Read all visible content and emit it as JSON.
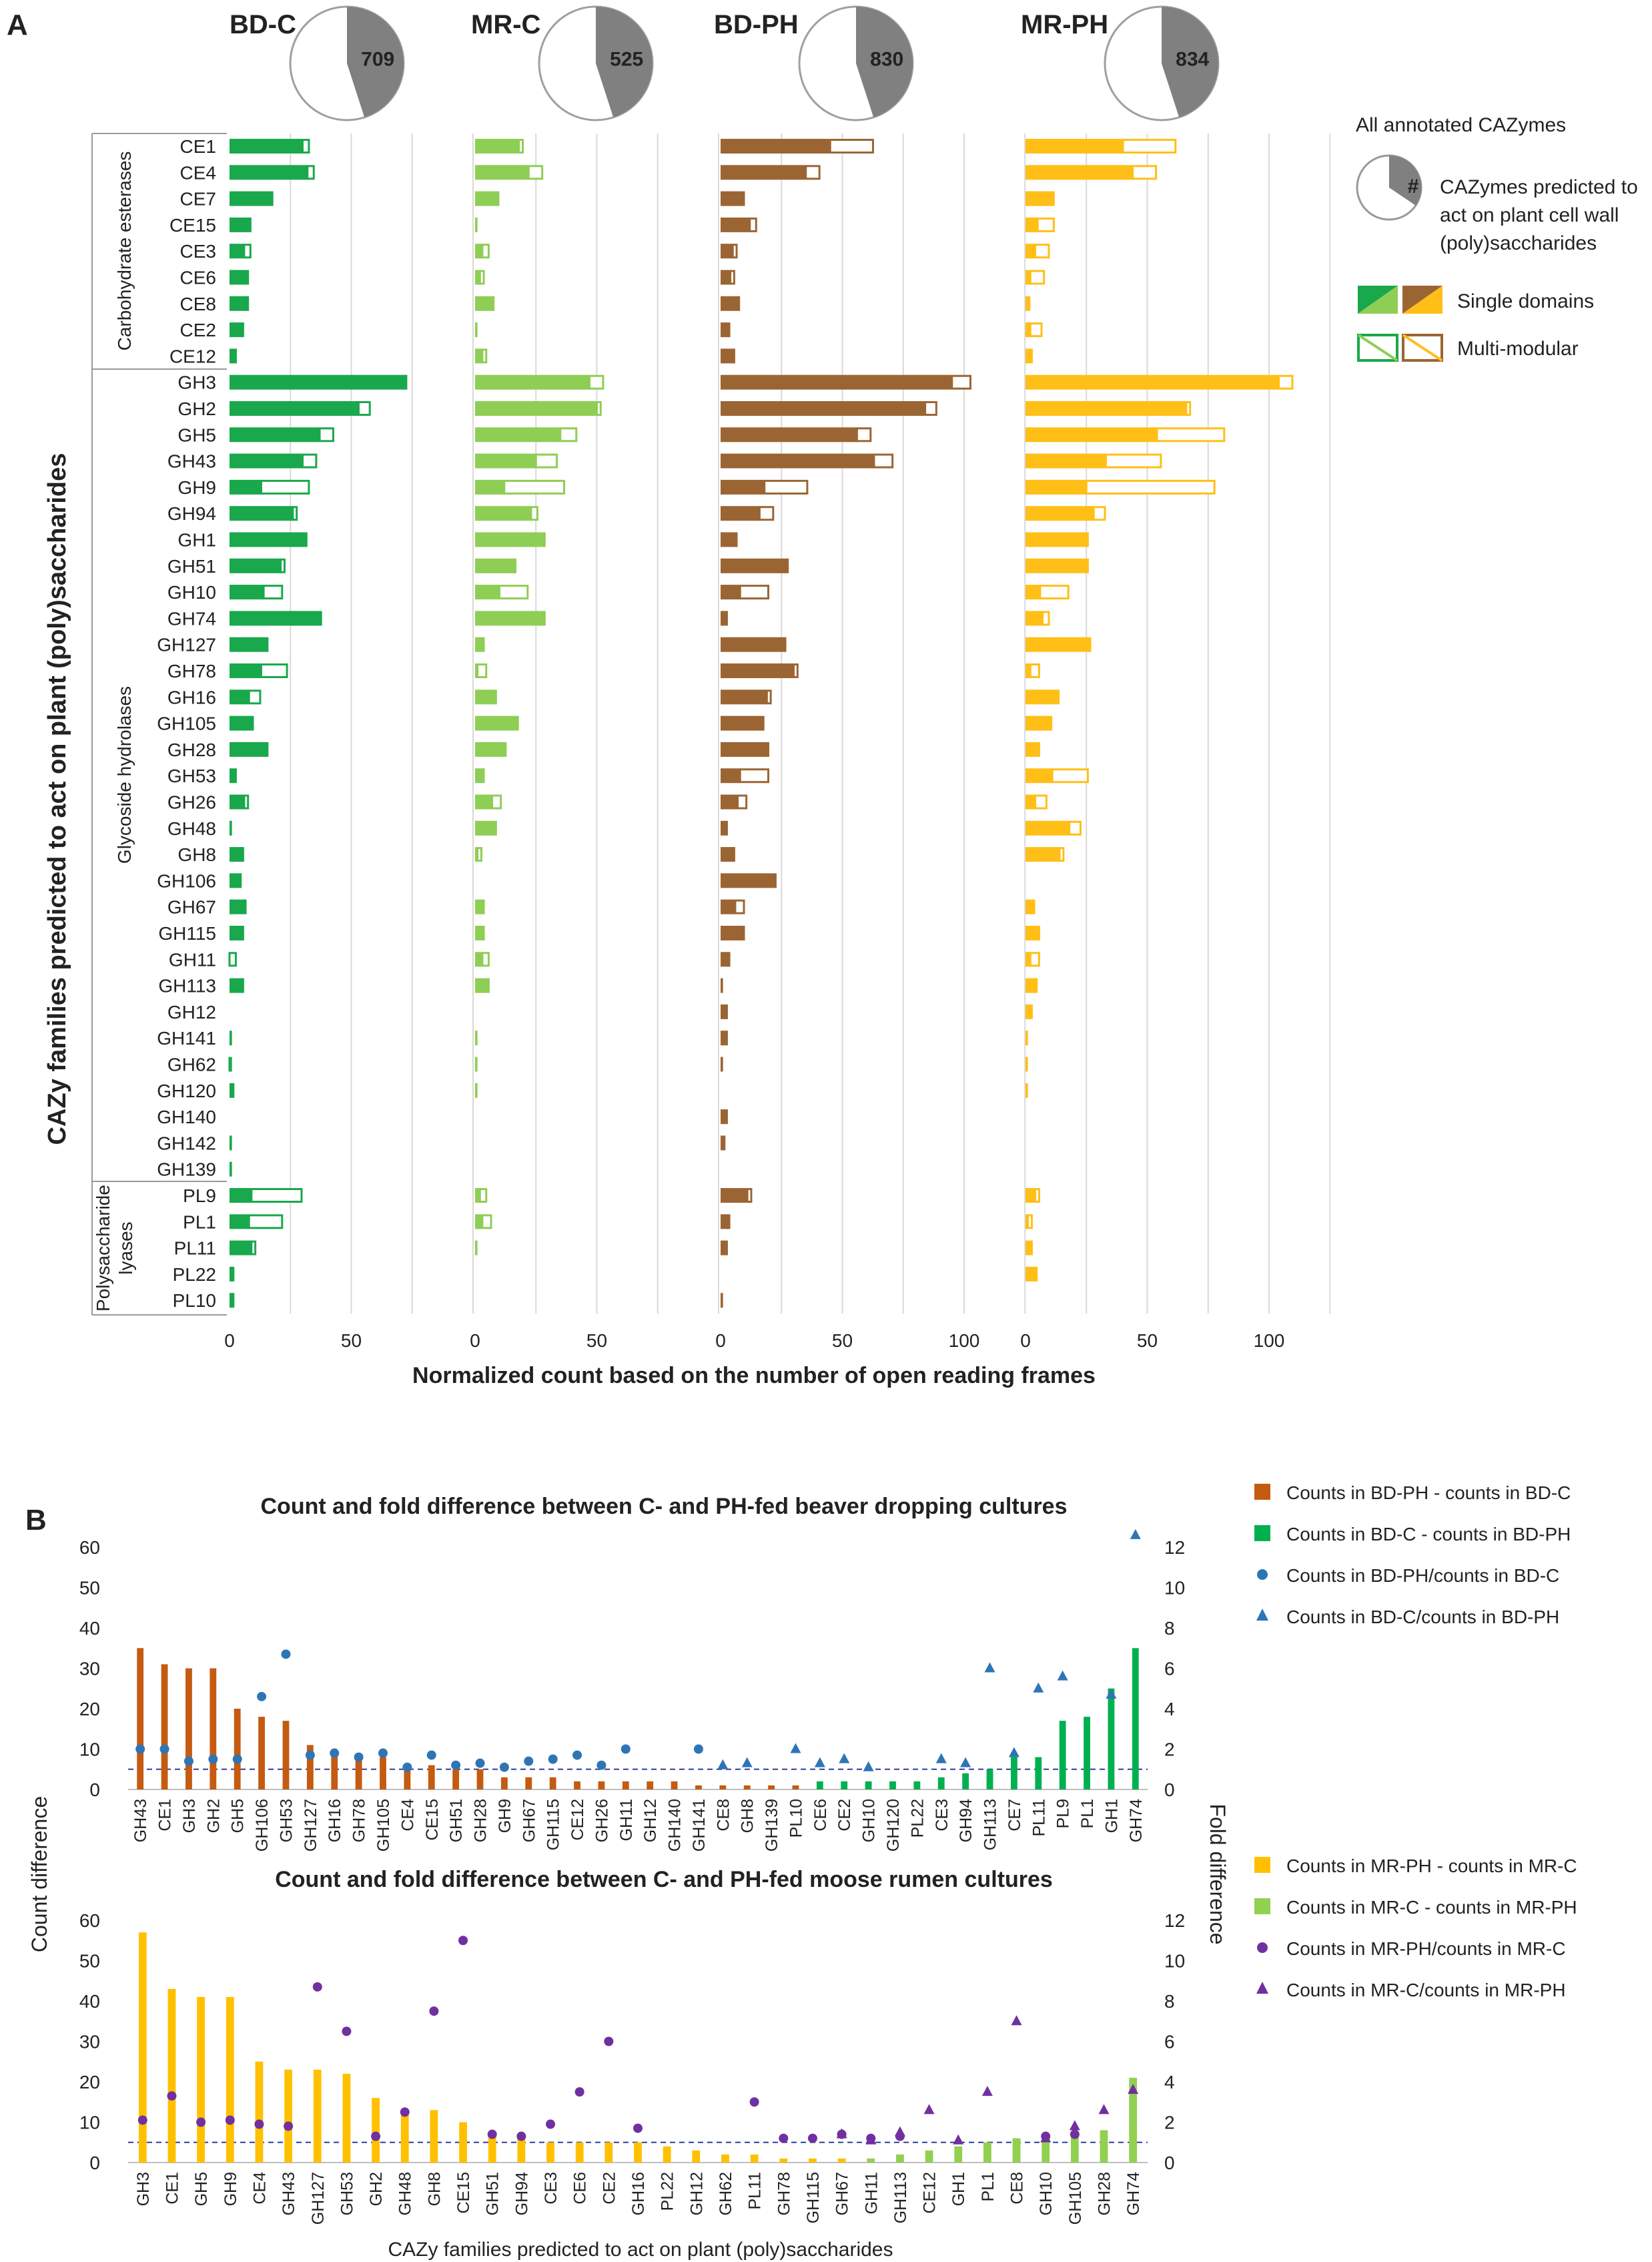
{
  "panel_a": {
    "label": "A",
    "y_axis_title": "CAZy families predicted to act on plant (poly)saccharides",
    "x_axis_title": "Normalized count based on the number of open reading frames",
    "groups": [
      {
        "name": "Carbohydrate esterases",
        "families": [
          "CE1",
          "CE4",
          "CE7",
          "CE15",
          "CE3",
          "CE6",
          "CE8",
          "CE2",
          "CE12"
        ]
      },
      {
        "name": "Glycoside hydrolases",
        "families": [
          "GH3",
          "GH2",
          "GH5",
          "GH43",
          "GH9",
          "GH94",
          "GH1",
          "GH51",
          "GH10",
          "GH74",
          "GH127",
          "GH78",
          "GH16",
          "GH105",
          "GH28",
          "GH53",
          "GH26",
          "GH48",
          "GH8",
          "GH106",
          "GH67",
          "GH115",
          "GH11",
          "GH113",
          "GH12",
          "GH141",
          "GH62",
          "GH120",
          "GH140",
          "GH142",
          "GH139"
        ]
      },
      {
        "name_lines": [
          "Polysaccharide",
          "lyases"
        ],
        "families": [
          "PL9",
          "PL1",
          "PL11",
          "PL22",
          "PL10"
        ]
      }
    ],
    "legend": {
      "all_label": "All annotated CAZymes",
      "pie_symbol": "#",
      "predicted_lines": [
        "CAZymes predicted to",
        "act on plant cell wall",
        "(poly)saccharides"
      ],
      "single_label": "Single domains",
      "multi_label": "Multi-modular"
    }
  },
  "panel_b": {
    "label": "B",
    "left_axis_title": "Count difference",
    "right_axis_title": "Fold difference",
    "x_axis_title": "CAZy families predicted to act on plant (poly)saccharides"
  },
  "chart_data": [
    {
      "type": "bar",
      "stacked": true,
      "orientation": "horizontal",
      "facets": [
        {
          "name": "BD-C",
          "pie_total": 709,
          "color": "#19a84c",
          "xlim": [
            0,
            100
          ],
          "ticks": [
            0,
            50
          ]
        },
        {
          "name": "MR-C",
          "pie_total": 525,
          "color": "#8fce55",
          "xlim": [
            0,
            100
          ],
          "ticks": [
            0,
            50
          ]
        },
        {
          "name": "BD-PH",
          "pie_total": 830,
          "color": "#9b6533",
          "xlim": [
            0,
            125
          ],
          "ticks": [
            0,
            50,
            100
          ]
        },
        {
          "name": "MR-PH",
          "pie_total": 834,
          "color": "#ffbf17",
          "xlim": [
            0,
            125
          ],
          "ticks": [
            0,
            50,
            100
          ]
        }
      ],
      "categories": [
        "CE1",
        "CE4",
        "CE7",
        "CE15",
        "CE3",
        "CE6",
        "CE8",
        "CE2",
        "CE12",
        "GH3",
        "GH2",
        "GH5",
        "GH43",
        "GH9",
        "GH94",
        "GH1",
        "GH51",
        "GH10",
        "GH74",
        "GH127",
        "GH78",
        "GH16",
        "GH105",
        "GH28",
        "GH53",
        "GH26",
        "GH48",
        "GH8",
        "GH106",
        "GH67",
        "GH115",
        "GH11",
        "GH113",
        "GH12",
        "GH141",
        "GH62",
        "GH120",
        "GH140",
        "GH142",
        "GH139",
        "PL9",
        "PL1",
        "PL11",
        "PL22",
        "PL10"
      ],
      "series": [
        {
          "facet": "BD-C",
          "name": "Single domains",
          "values": [
            30,
            32,
            18,
            9,
            6,
            7,
            7,
            5,
            3,
            72,
            53,
            37,
            30,
            13,
            26,
            32,
            21,
            14,
            38,
            16,
            13,
            8,
            10,
            15,
            3,
            6,
            1,
            5,
            5,
            7,
            6,
            0,
            6,
            0,
            1,
            0,
            2,
            0,
            1,
            1,
            9,
            8,
            9,
            2,
            2
          ]
        },
        {
          "facet": "BD-C",
          "name": "Multi-modular",
          "values": [
            3,
            3,
            0,
            0,
            3,
            1,
            1,
            1,
            0,
            1,
            5,
            6,
            6,
            20,
            2,
            0,
            2,
            8,
            0,
            0,
            11,
            5,
            0,
            1,
            0,
            2,
            0,
            1,
            0,
            0,
            0,
            3,
            0,
            0,
            0,
            1,
            0,
            0,
            0,
            0,
            21,
            14,
            2,
            0,
            0
          ]
        },
        {
          "facet": "MR-C",
          "name": "Single domains",
          "values": [
            18,
            22,
            10,
            1,
            3,
            2,
            8,
            1,
            3,
            47,
            50,
            35,
            25,
            12,
            23,
            29,
            16,
            10,
            29,
            4,
            1,
            8,
            18,
            13,
            3,
            7,
            9,
            1,
            0,
            4,
            4,
            3,
            6,
            0,
            1,
            1,
            1,
            0,
            0,
            0,
            2,
            3,
            1,
            0,
            0
          ]
        },
        {
          "facet": "MR-C",
          "name": "Multi-modular",
          "values": [
            2,
            6,
            0,
            0,
            3,
            2,
            0,
            0,
            2,
            6,
            2,
            7,
            9,
            25,
            3,
            0,
            1,
            12,
            0,
            0,
            4,
            1,
            0,
            0,
            1,
            4,
            0,
            2,
            0,
            0,
            0,
            3,
            0,
            0,
            0,
            0,
            0,
            0,
            0,
            0,
            3,
            4,
            0,
            0,
            0
          ]
        },
        {
          "facet": "BD-PH",
          "name": "Single domains",
          "values": [
            45,
            35,
            10,
            12,
            5,
            4,
            7,
            4,
            5,
            95,
            84,
            56,
            63,
            18,
            16,
            7,
            27,
            8,
            3,
            27,
            30,
            19,
            18,
            20,
            8,
            7,
            3,
            5,
            23,
            6,
            9,
            3,
            1,
            3,
            3,
            1,
            0,
            3,
            2,
            0,
            11,
            3,
            3,
            0,
            1
          ]
        },
        {
          "facet": "BD-PH",
          "name": "Multi-modular",
          "values": [
            18,
            6,
            0,
            3,
            2,
            2,
            1,
            0,
            1,
            8,
            5,
            6,
            8,
            18,
            6,
            0,
            1,
            12,
            0,
            0,
            2,
            2,
            0,
            0,
            12,
            4,
            0,
            1,
            0,
            4,
            1,
            1,
            0,
            0,
            0,
            0,
            0,
            0,
            0,
            0,
            2,
            1,
            0,
            0,
            0
          ]
        },
        {
          "facet": "MR-PH",
          "name": "Single domains",
          "values": [
            40,
            44,
            12,
            5,
            4,
            2,
            2,
            2,
            3,
            104,
            66,
            54,
            33,
            25,
            28,
            26,
            25,
            6,
            7,
            27,
            2,
            14,
            11,
            6,
            11,
            4,
            18,
            14,
            0,
            3,
            6,
            2,
            4,
            3,
            1,
            1,
            1,
            0,
            0,
            0,
            4,
            1,
            3,
            5,
            0
          ]
        },
        {
          "facet": "MR-PH",
          "name": "Multi-modular",
          "values": [
            22,
            10,
            0,
            7,
            6,
            6,
            0,
            5,
            0,
            6,
            2,
            28,
            23,
            53,
            5,
            0,
            1,
            12,
            3,
            0,
            4,
            0,
            0,
            0,
            15,
            5,
            5,
            2,
            0,
            1,
            0,
            4,
            1,
            0,
            0,
            0,
            0,
            0,
            0,
            0,
            2,
            2,
            0,
            0,
            0
          ]
        }
      ],
      "xlabel": "Normalized count based on the number of open reading frames",
      "ylabel": "CAZy families predicted to act on plant (poly)saccharides"
    },
    {
      "type": "bar",
      "title": "Count and fold difference between C- and PH-fed beaver dropping cultures",
      "categories": [
        "GH43",
        "CE1",
        "GH3",
        "GH2",
        "GH5",
        "GH106",
        "GH53",
        "GH127",
        "GH16",
        "GH78",
        "GH105",
        "CE4",
        "CE15",
        "GH51",
        "GH28",
        "GH9",
        "GH67",
        "GH115",
        "CE12",
        "GH26",
        "GH11",
        "GH12",
        "GH140",
        "GH141",
        "CE8",
        "GH8",
        "GH139",
        "PL10",
        "CE6",
        "CE2",
        "GH10",
        "GH120",
        "PL22",
        "CE3",
        "GH94",
        "GH113",
        "CE7",
        "PL11",
        "PL9",
        "PL1",
        "GH1",
        "GH74"
      ],
      "ylim_left": [
        0,
        60
      ],
      "ylim_right": [
        0,
        12
      ],
      "yticks_left": [
        0,
        10,
        20,
        30,
        40,
        50,
        60
      ],
      "yticks_right": [
        0,
        2,
        4,
        6,
        8,
        10,
        12
      ],
      "reference_line_right": 1,
      "series": [
        {
          "name": "Counts in BD-PH - counts in BD-C",
          "color": "#c55a11",
          "kind": "bar",
          "axis": "left",
          "values": [
            35,
            31,
            30,
            30,
            20,
            18,
            17,
            11,
            9,
            8,
            8,
            6,
            6,
            5,
            5,
            3,
            3,
            3,
            2,
            2,
            2,
            2,
            2,
            1,
            1,
            1,
            1,
            1,
            0,
            0,
            0,
            0,
            0,
            0,
            0,
            0,
            0,
            0,
            0,
            0,
            0,
            0
          ]
        },
        {
          "name": "Counts in BD-C - counts in BD-PH",
          "color": "#00b050",
          "kind": "bar",
          "axis": "left",
          "values": [
            0,
            0,
            0,
            0,
            0,
            0,
            0,
            0,
            0,
            0,
            0,
            0,
            0,
            0,
            0,
            0,
            0,
            0,
            0,
            0,
            0,
            0,
            0,
            0,
            0,
            0,
            0,
            0,
            2,
            2,
            2,
            2,
            2,
            3,
            4,
            5,
            8,
            8,
            17,
            18,
            25,
            35
          ]
        },
        {
          "name": "Counts in BD-PH/counts in BD-C",
          "color": "#2e75b6",
          "kind": "circle",
          "axis": "right",
          "values": [
            2.0,
            2.0,
            1.4,
            1.5,
            1.5,
            4.6,
            6.7,
            1.7,
            1.8,
            1.6,
            1.8,
            1.1,
            1.7,
            1.2,
            1.3,
            1.1,
            1.4,
            1.5,
            1.7,
            1.2,
            2.0,
            null,
            null,
            2.0,
            null,
            null,
            null,
            null,
            null,
            null,
            null,
            null,
            null,
            null,
            null,
            null,
            null,
            null,
            null,
            null,
            null,
            null
          ]
        },
        {
          "name": "Counts in BD-C/counts in BD-PH",
          "color": "#2e75b6",
          "kind": "triangle",
          "axis": "right",
          "values": [
            null,
            null,
            null,
            null,
            null,
            null,
            null,
            null,
            null,
            null,
            null,
            null,
            null,
            null,
            null,
            null,
            null,
            null,
            null,
            null,
            null,
            null,
            null,
            null,
            1.2,
            1.3,
            null,
            2.0,
            1.3,
            1.5,
            1.1,
            null,
            null,
            1.5,
            1.3,
            6.0,
            1.8,
            5.0,
            5.6,
            null,
            4.7,
            12.6
          ]
        }
      ],
      "ylabel": "Count difference",
      "ylabel_right": "Fold difference"
    },
    {
      "type": "bar",
      "title": "Count and fold difference between C- and PH-fed moose rumen cultures",
      "categories": [
        "GH3",
        "CE1",
        "GH5",
        "GH9",
        "CE4",
        "GH43",
        "GH127",
        "GH53",
        "GH2",
        "GH48",
        "GH8",
        "CE15",
        "GH51",
        "GH94",
        "CE3",
        "CE6",
        "CE2",
        "GH16",
        "PL22",
        "GH12",
        "GH62",
        "PL11",
        "GH78",
        "GH115",
        "GH67",
        "GH11",
        "GH113",
        "CE12",
        "GH1",
        "PL1",
        "CE8",
        "GH10",
        "GH105",
        "GH28",
        "GH74"
      ],
      "ylim_left": [
        0,
        60
      ],
      "ylim_right": [
        0,
        12
      ],
      "yticks_left": [
        0,
        10,
        20,
        30,
        40,
        50,
        60
      ],
      "yticks_right": [
        0,
        2,
        4,
        6,
        8,
        10,
        12
      ],
      "reference_line_right": 1,
      "series": [
        {
          "name": "Counts in MR-PH - counts in MR-C",
          "color": "#ffc000",
          "kind": "bar",
          "axis": "left",
          "values": [
            57,
            43,
            41,
            41,
            25,
            23,
            23,
            22,
            16,
            13,
            13,
            10,
            7,
            6,
            5,
            5,
            5,
            5,
            4,
            3,
            2,
            2,
            1,
            1,
            1,
            0,
            0,
            0,
            0,
            0,
            0,
            0,
            0,
            0,
            0
          ]
        },
        {
          "name": "Counts in MR-C - counts in MR-PH",
          "color": "#92d050",
          "kind": "bar",
          "axis": "left",
          "values": [
            0,
            0,
            0,
            0,
            0,
            0,
            0,
            0,
            0,
            0,
            0,
            0,
            0,
            0,
            0,
            0,
            0,
            0,
            0,
            0,
            0,
            0,
            0,
            0,
            0,
            1,
            2,
            3,
            4,
            5,
            6,
            6,
            7,
            8,
            21
          ]
        },
        {
          "name": "Counts in MR-PH/counts in MR-C",
          "color": "#7030a0",
          "kind": "circle",
          "axis": "right",
          "values": [
            2.1,
            3.3,
            2.0,
            2.1,
            1.9,
            1.8,
            8.7,
            6.5,
            1.3,
            2.5,
            7.5,
            11.0,
            1.4,
            1.3,
            1.9,
            3.5,
            6.0,
            1.7,
            null,
            null,
            null,
            3.0,
            1.2,
            1.2,
            1.4,
            1.2,
            1.3,
            null,
            null,
            null,
            null,
            1.3,
            1.4,
            null,
            null
          ]
        },
        {
          "name": "Counts in MR-C/counts in MR-PH",
          "color": "#7030a0",
          "kind": "triangle",
          "axis": "right",
          "values": [
            null,
            null,
            null,
            null,
            null,
            null,
            null,
            null,
            null,
            null,
            null,
            null,
            null,
            null,
            null,
            null,
            null,
            null,
            null,
            null,
            null,
            null,
            null,
            null,
            1.4,
            1.1,
            1.5,
            2.6,
            1.1,
            3.5,
            7.0,
            1.2,
            1.8,
            2.6,
            3.6
          ]
        }
      ],
      "xlabel": "CAZy families predicted to act on plant (poly)saccharides",
      "ylabel": "Count difference",
      "ylabel_right": "Fold difference"
    }
  ]
}
